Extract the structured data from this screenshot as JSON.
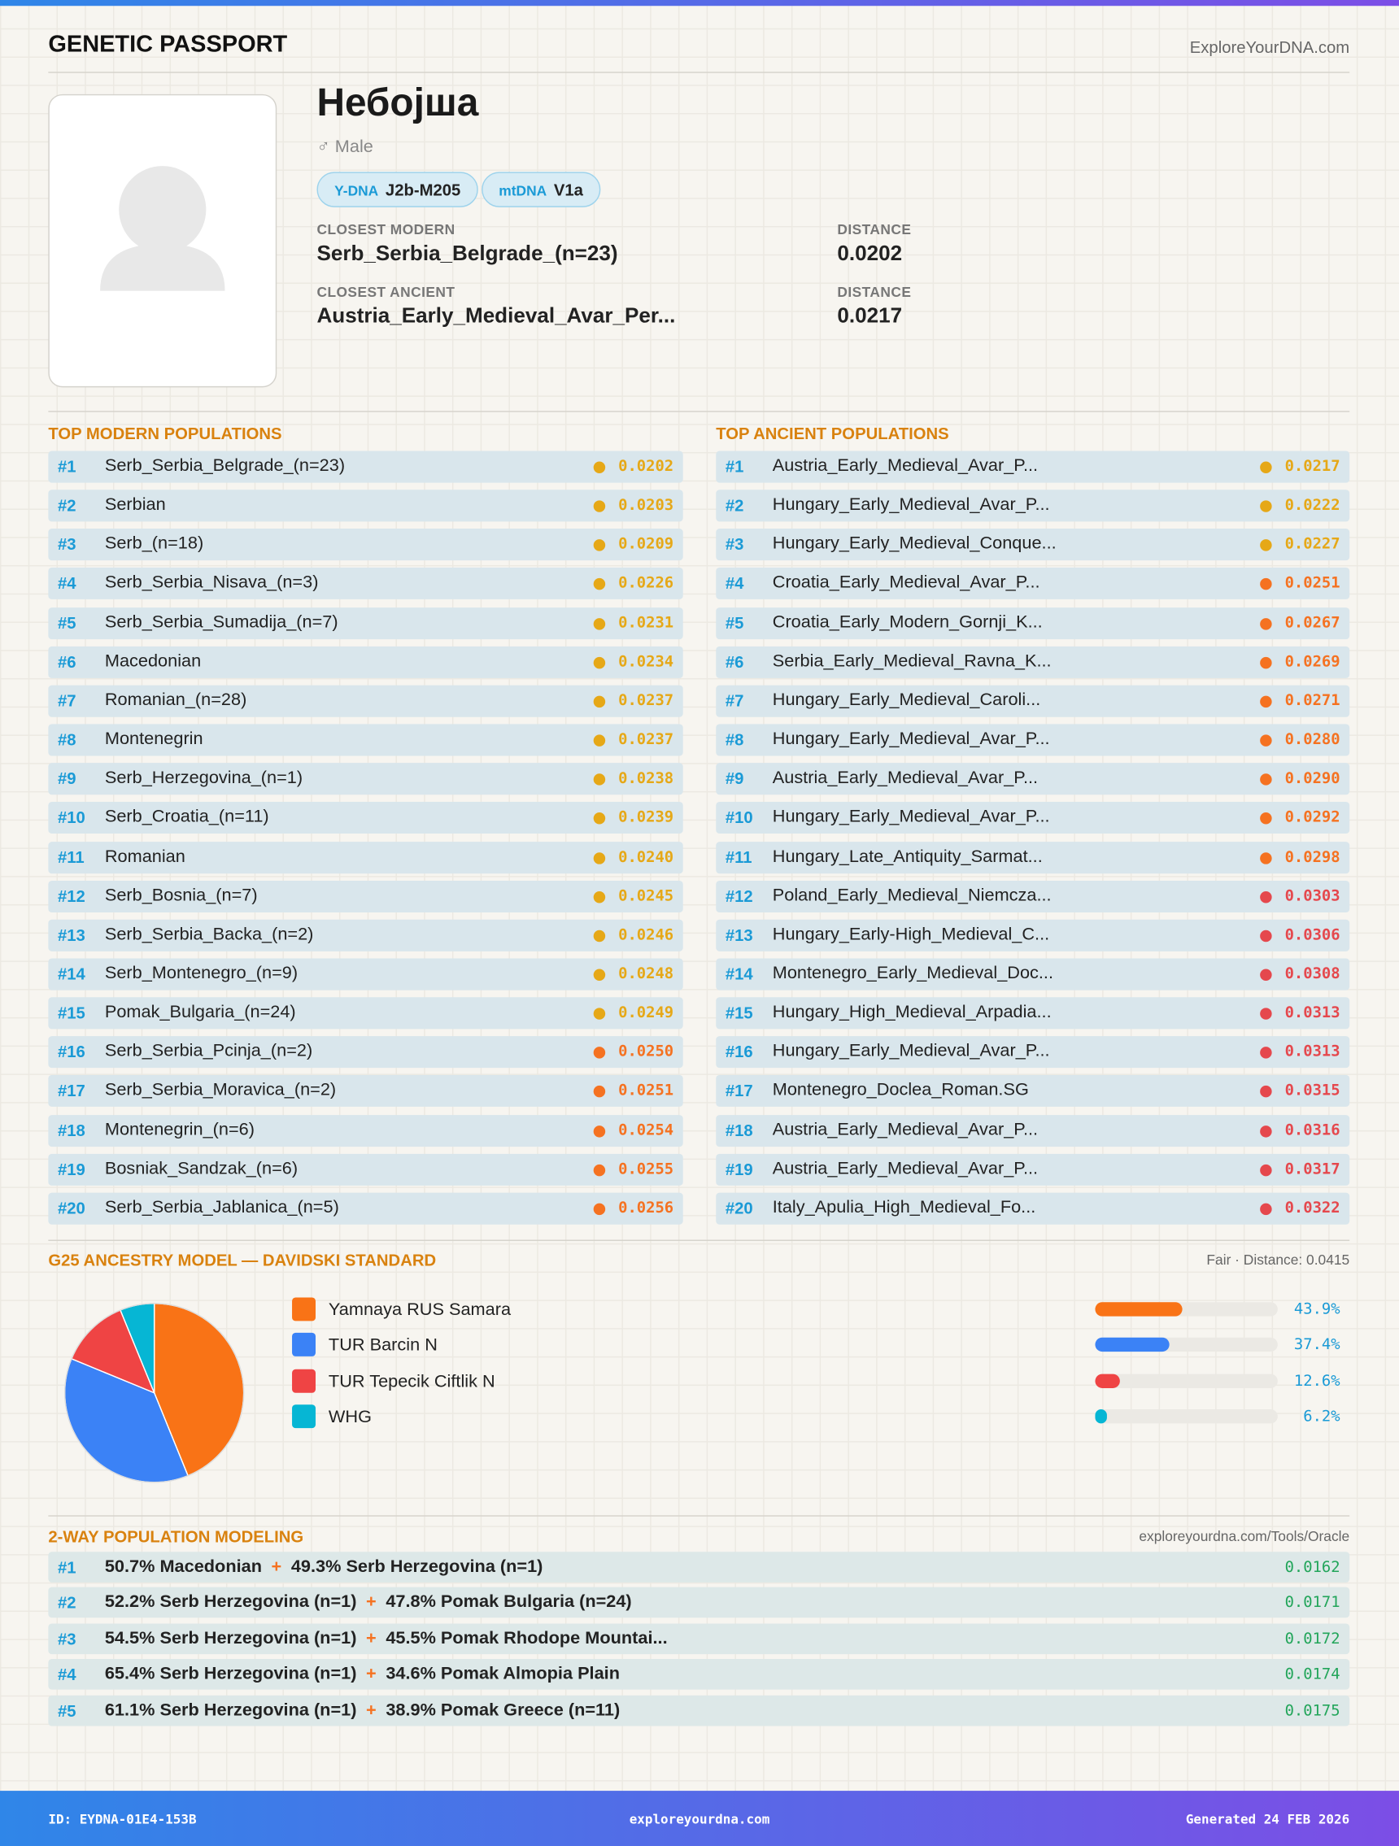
{
  "header": {
    "title": "GENETIC PASSPORT",
    "site": "ExploreYourDNA.com"
  },
  "profile": {
    "name": "Небојша",
    "gender": "♂ Male",
    "ydna_label": "Y-DNA",
    "ydna": "J2b-M205",
    "mtdna_label": "mtDNA",
    "mtdna": "V1a",
    "closest_modern_label": "CLOSEST MODERN",
    "closest_modern": "Serb_Serbia_Belgrade_(n=23)",
    "distance_label": "DISTANCE",
    "closest_modern_distance": "0.0202",
    "closest_ancient_label": "CLOSEST ANCIENT",
    "closest_ancient": "Austria_Early_Medieval_Avar_Per...",
    "closest_ancient_distance": "0.0217"
  },
  "modern": {
    "title": "TOP MODERN POPULATIONS",
    "rows": [
      {
        "rank": "#1",
        "name": "Serb_Serbia_Belgrade_(n=23)",
        "distance": "0.0202",
        "color": "#e6a817"
      },
      {
        "rank": "#2",
        "name": "Serbian",
        "distance": "0.0203",
        "color": "#e6a817"
      },
      {
        "rank": "#3",
        "name": "Serb_(n=18)",
        "distance": "0.0209",
        "color": "#e6a817"
      },
      {
        "rank": "#4",
        "name": "Serb_Serbia_Nisava_(n=3)",
        "distance": "0.0226",
        "color": "#e6a817"
      },
      {
        "rank": "#5",
        "name": "Serb_Serbia_Sumadija_(n=7)",
        "distance": "0.0231",
        "color": "#e6a817"
      },
      {
        "rank": "#6",
        "name": "Macedonian",
        "distance": "0.0234",
        "color": "#e6a817"
      },
      {
        "rank": "#7",
        "name": "Romanian_(n=28)",
        "distance": "0.0237",
        "color": "#e6a817"
      },
      {
        "rank": "#8",
        "name": "Montenegrin",
        "distance": "0.0237",
        "color": "#e6a817"
      },
      {
        "rank": "#9",
        "name": "Serb_Herzegovina_(n=1)",
        "distance": "0.0238",
        "color": "#e6a817"
      },
      {
        "rank": "#10",
        "name": "Serb_Croatia_(n=11)",
        "distance": "0.0239",
        "color": "#e6a817"
      },
      {
        "rank": "#11",
        "name": "Romanian",
        "distance": "0.0240",
        "color": "#e6a817"
      },
      {
        "rank": "#12",
        "name": "Serb_Bosnia_(n=7)",
        "distance": "0.0245",
        "color": "#e6a817"
      },
      {
        "rank": "#13",
        "name": "Serb_Serbia_Backa_(n=2)",
        "distance": "0.0246",
        "color": "#e6a817"
      },
      {
        "rank": "#14",
        "name": "Serb_Montenegro_(n=9)",
        "distance": "0.0248",
        "color": "#e6a817"
      },
      {
        "rank": "#15",
        "name": "Pomak_Bulgaria_(n=24)",
        "distance": "0.0249",
        "color": "#e6a817"
      },
      {
        "rank": "#16",
        "name": "Serb_Serbia_Pcinja_(n=2)",
        "distance": "0.0250",
        "color": "#f57221"
      },
      {
        "rank": "#17",
        "name": "Serb_Serbia_Moravica_(n=2)",
        "distance": "0.0251",
        "color": "#f57221"
      },
      {
        "rank": "#18",
        "name": "Montenegrin_(n=6)",
        "distance": "0.0254",
        "color": "#f57221"
      },
      {
        "rank": "#19",
        "name": "Bosniak_Sandzak_(n=6)",
        "distance": "0.0255",
        "color": "#f57221"
      },
      {
        "rank": "#20",
        "name": "Serb_Serbia_Jablanica_(n=5)",
        "distance": "0.0256",
        "color": "#f57221"
      }
    ]
  },
  "ancient": {
    "title": "TOP ANCIENT POPULATIONS",
    "rows": [
      {
        "rank": "#1",
        "name": "Austria_Early_Medieval_Avar_P...",
        "distance": "0.0217",
        "color": "#e6a817"
      },
      {
        "rank": "#2",
        "name": "Hungary_Early_Medieval_Avar_P...",
        "distance": "0.0222",
        "color": "#e6a817"
      },
      {
        "rank": "#3",
        "name": "Hungary_Early_Medieval_Conque...",
        "distance": "0.0227",
        "color": "#e6a817"
      },
      {
        "rank": "#4",
        "name": "Croatia_Early_Medieval_Avar_P...",
        "distance": "0.0251",
        "color": "#f57221"
      },
      {
        "rank": "#5",
        "name": "Croatia_Early_Modern_Gornji_K...",
        "distance": "0.0267",
        "color": "#f57221"
      },
      {
        "rank": "#6",
        "name": "Serbia_Early_Medieval_Ravna_K...",
        "distance": "0.0269",
        "color": "#f57221"
      },
      {
        "rank": "#7",
        "name": "Hungary_Early_Medieval_Caroli...",
        "distance": "0.0271",
        "color": "#f57221"
      },
      {
        "rank": "#8",
        "name": "Hungary_Early_Medieval_Avar_P...",
        "distance": "0.0280",
        "color": "#f57221"
      },
      {
        "rank": "#9",
        "name": "Austria_Early_Medieval_Avar_P...",
        "distance": "0.0290",
        "color": "#f57221"
      },
      {
        "rank": "#10",
        "name": "Hungary_Early_Medieval_Avar_P...",
        "distance": "0.0292",
        "color": "#f57221"
      },
      {
        "rank": "#11",
        "name": "Hungary_Late_Antiquity_Sarmat...",
        "distance": "0.0298",
        "color": "#f57221"
      },
      {
        "rank": "#12",
        "name": "Poland_Early_Medieval_Niemcza...",
        "distance": "0.0303",
        "color": "#e5484d"
      },
      {
        "rank": "#13",
        "name": "Hungary_Early-High_Medieval_C...",
        "distance": "0.0306",
        "color": "#e5484d"
      },
      {
        "rank": "#14",
        "name": "Montenegro_Early_Medieval_Doc...",
        "distance": "0.0308",
        "color": "#e5484d"
      },
      {
        "rank": "#15",
        "name": "Hungary_High_Medieval_Arpadia...",
        "distance": "0.0313",
        "color": "#e5484d"
      },
      {
        "rank": "#16",
        "name": "Hungary_Early_Medieval_Avar_P...",
        "distance": "0.0313",
        "color": "#e5484d"
      },
      {
        "rank": "#17",
        "name": "Montenegro_Doclea_Roman.SG",
        "distance": "0.0315",
        "color": "#e5484d"
      },
      {
        "rank": "#18",
        "name": "Austria_Early_Medieval_Avar_P...",
        "distance": "0.0316",
        "color": "#e5484d"
      },
      {
        "rank": "#19",
        "name": "Austria_Early_Medieval_Avar_P...",
        "distance": "0.0317",
        "color": "#e5484d"
      },
      {
        "rank": "#20",
        "name": "Italy_Apulia_High_Medieval_Fo...",
        "distance": "0.0322",
        "color": "#e5484d"
      }
    ]
  },
  "model": {
    "title": "G25 ANCESTRY MODEL — DAVIDSKI STANDARD",
    "fit": "Fair · Distance: 0.0415",
    "type": "pie",
    "components": [
      {
        "name": "Yamnaya RUS Samara",
        "color": "#f97316",
        "value": 43.9,
        "label": "43.9%"
      },
      {
        "name": "TUR Barcin N",
        "color": "#3b82f6",
        "value": 37.4,
        "label": "37.4%"
      },
      {
        "name": "TUR Tepecik Ciftlik N",
        "color": "#ef4444",
        "value": 12.6,
        "label": "12.6%"
      },
      {
        "name": "WHG",
        "color": "#06b6d4",
        "value": 6.2,
        "label": "6.2%"
      }
    ]
  },
  "two_way": {
    "title": "2-WAY POPULATION MODELING",
    "source": "exploreyourdna.com/Tools/Oracle",
    "separator": "+",
    "rows": [
      {
        "rank": "#1",
        "a": "50.7% Macedonian",
        "b": "49.3% Serb Herzegovina (n=1)",
        "distance": "0.0162"
      },
      {
        "rank": "#2",
        "a": "52.2% Serb Herzegovina (n=1)",
        "b": "47.8% Pomak Bulgaria (n=24)",
        "distance": "0.0171"
      },
      {
        "rank": "#3",
        "a": "54.5% Serb Herzegovina (n=1)",
        "b": "45.5% Pomak Rhodope Mountai...",
        "distance": "0.0172"
      },
      {
        "rank": "#4",
        "a": "65.4% Serb Herzegovina (n=1)",
        "b": "34.6% Pomak Almopia Plain",
        "distance": "0.0174"
      },
      {
        "rank": "#5",
        "a": "61.1% Serb Herzegovina (n=1)",
        "b": "38.9% Pomak Greece (n=11)",
        "distance": "0.0175"
      }
    ]
  },
  "footer": {
    "id": "ID: EYDNA-01E4-153B",
    "site": "exploreyourdna.com",
    "generated": "Generated 24 FEB 2026"
  }
}
